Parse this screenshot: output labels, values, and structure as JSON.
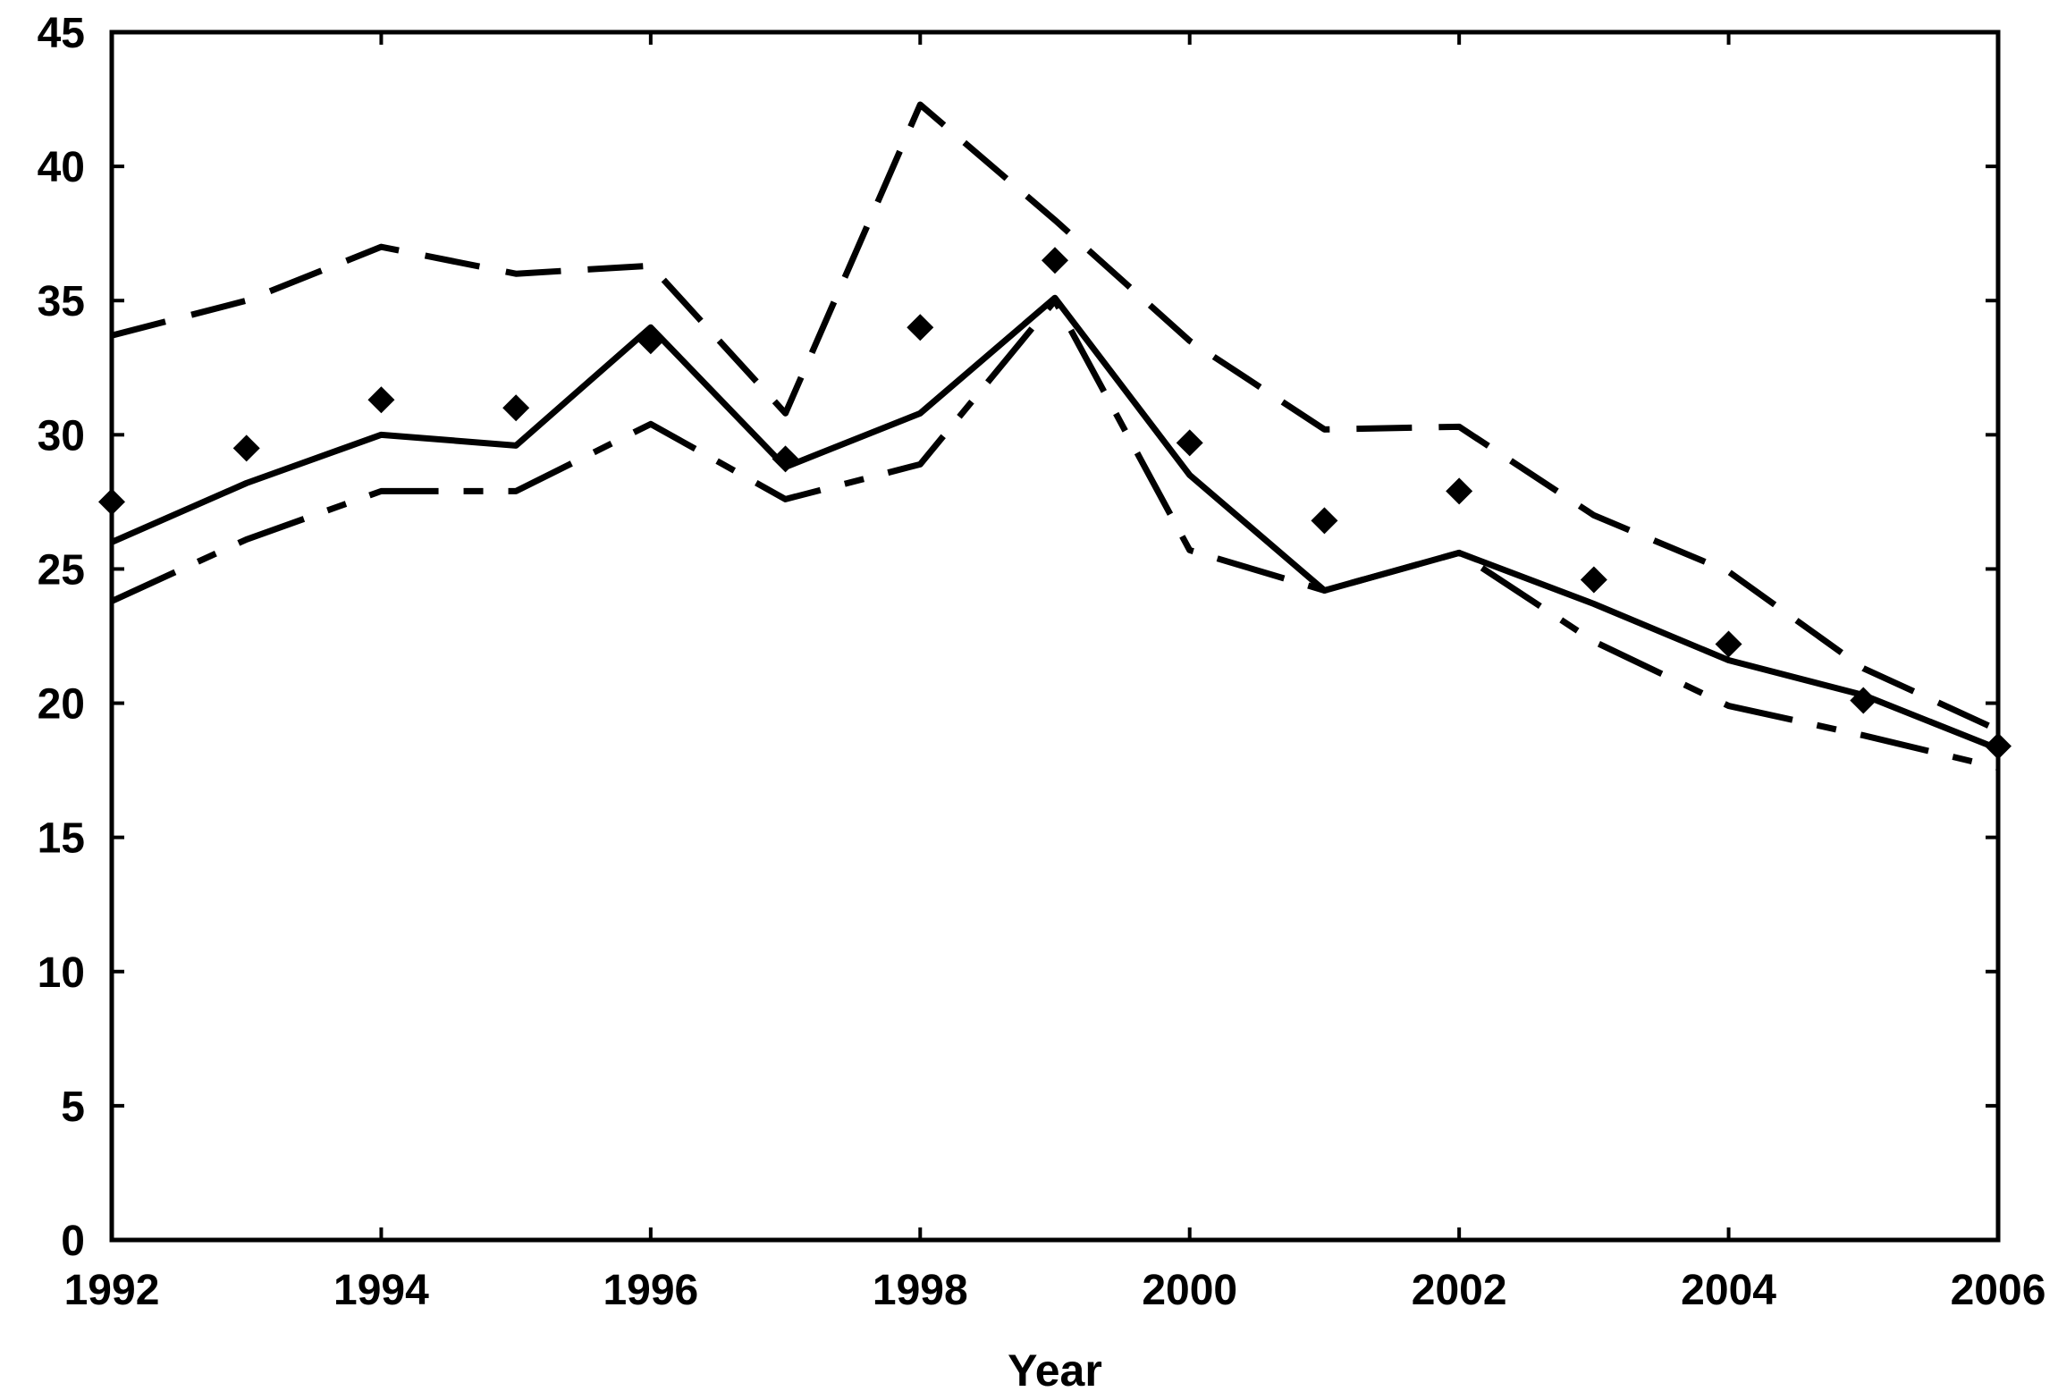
{
  "chart_data": {
    "type": "line",
    "title": "",
    "xlabel": "Year",
    "ylabel": "",
    "xlim": [
      1992,
      2006
    ],
    "ylim": [
      0,
      45
    ],
    "x_ticks": [
      1992,
      1994,
      1996,
      1998,
      2000,
      2002,
      2004,
      2006
    ],
    "y_ticks": [
      0,
      5,
      10,
      15,
      20,
      25,
      30,
      35,
      40,
      45
    ],
    "grid": false,
    "legend": "none",
    "x": [
      1992,
      1993,
      1994,
      1995,
      1996,
      1997,
      1998,
      1999,
      2000,
      2001,
      2002,
      2003,
      2004,
      2005,
      2006
    ],
    "series": [
      {
        "style": "solid",
        "values": [
          26.0,
          28.2,
          30.0,
          29.6,
          34.0,
          28.8,
          30.8,
          35.1,
          28.5,
          24.2,
          25.6,
          23.7,
          21.6,
          20.3,
          18.3
        ]
      },
      {
        "style": "long-dash",
        "values": [
          33.7,
          35.0,
          37.0,
          36.0,
          36.3,
          30.8,
          42.3,
          38.0,
          33.5,
          30.2,
          30.3,
          27.0,
          24.9,
          21.3,
          19.0
        ]
      },
      {
        "style": "dash-dot",
        "values": [
          23.8,
          26.1,
          27.9,
          27.9,
          30.4,
          27.6,
          28.9,
          35.0,
          25.7,
          24.2,
          25.6,
          22.3,
          19.9,
          18.8,
          17.6
        ]
      },
      {
        "style": "markers",
        "marker": "diamond",
        "values": [
          27.5,
          29.5,
          31.3,
          31.0,
          33.5,
          29.1,
          34.0,
          36.5,
          29.7,
          26.8,
          27.9,
          24.6,
          22.2,
          20.1,
          18.4
        ]
      }
    ],
    "colors": {
      "line": "#000000",
      "background": "#ffffff"
    }
  }
}
